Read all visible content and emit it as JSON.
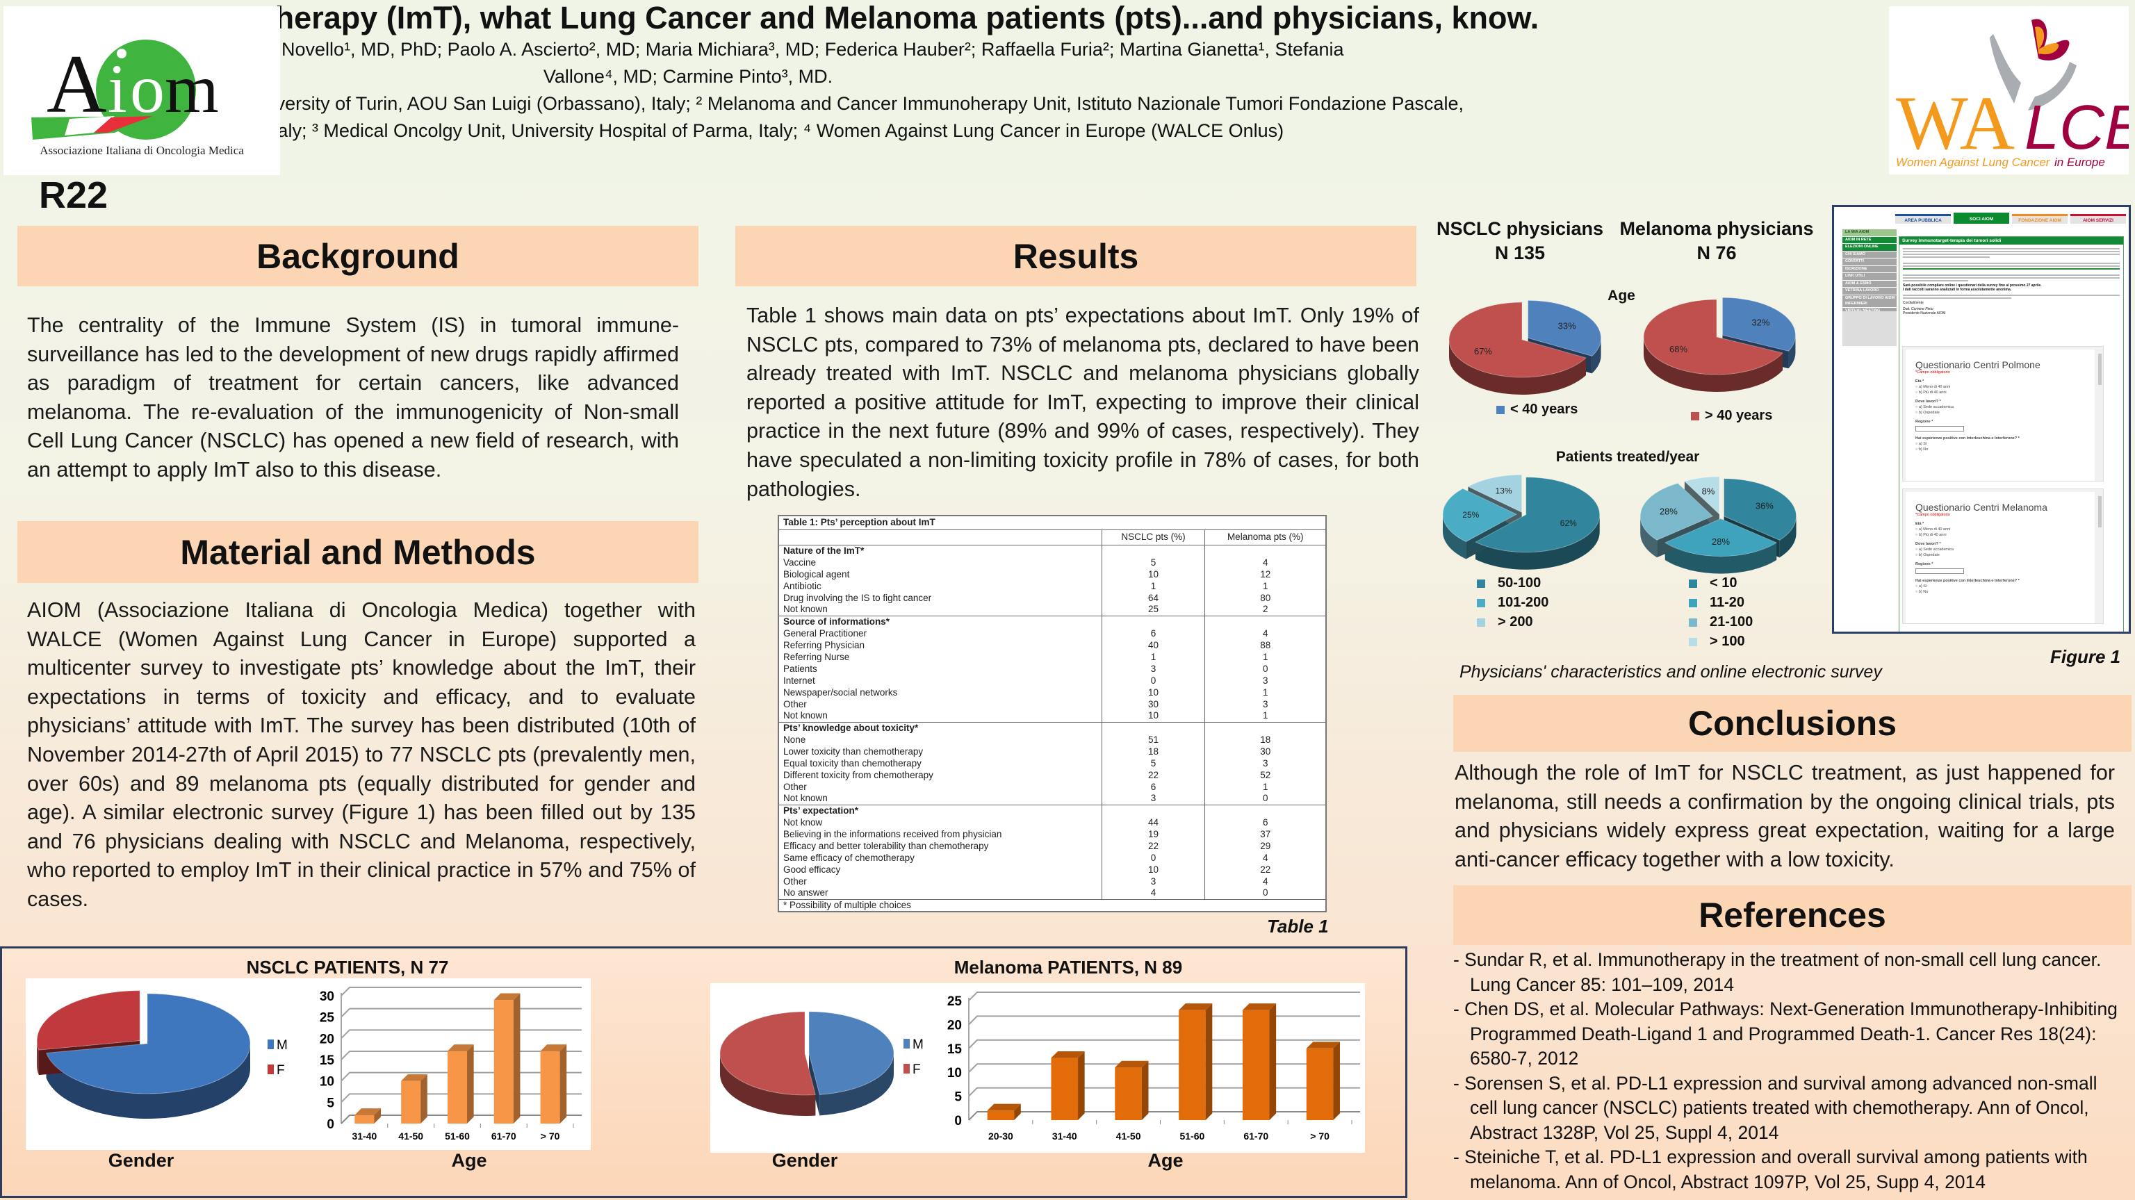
{
  "poster": {
    "title": "Immunotherapy (ImT), what Lung Cancer and Melanoma patients (pts)...and physicians, know.",
    "authors": "Enrica Capelletto¹, MD; Silvia Novello¹, MD, PhD; Paolo A. Ascierto², MD; Maria Michiara³, MD; Federica Hauber²; Raffaella Furia²; Martina Gianetta¹, Stefania Vallone⁴, MD; Carmine Pinto³, MD.",
    "affiliations": "¹ Department of Oncology, University of Turin, AOU San Luigi (Orbassano), Italy; ² Melanoma and Cancer Immunoherapy Unit, Istituto Nazionale Tumori Fondazione Pascale, Napoli, Italy; ³ Medical Oncolgy Unit, University Hospital of Parma, Italy; ⁴ Women Against Lung Cancer in Europe (WALCE Onlus)",
    "poster_id": "R22"
  },
  "logos": {
    "aiom": {
      "mark": "Aiom",
      "subtitle": "Associazione Italiana di Oncologia Medica",
      "colors": {
        "green": "#3fb53f",
        "red": "#e8303a"
      }
    },
    "walce": {
      "mark_wa": "WA",
      "mark_lce": "LCE",
      "tagline_a": "Women Against Lung Cancer",
      "tagline_b": "in Europe",
      "colors": {
        "orange": "#f39a1e",
        "crimson": "#a0003f"
      }
    }
  },
  "background": {
    "heading": "Background",
    "text": "The centrality of the Immune System (IS) in tumoral immune-surveillance has led to the development of new drugs rapidly affirmed as paradigm of treatment for certain cancers, like advanced melanoma. The re-evaluation of the immunogenicity of Non-small Cell Lung Cancer (NSCLC) has opened a new field of research, with an attempt to apply ImT also to this disease."
  },
  "methods": {
    "heading": "Material and Methods",
    "text": "AIOM (Associazione Italiana di Oncologia Medica) together with WALCE (Women Against Lung Cancer in Europe) supported a multicenter survey to investigate pts’ knowledge about the ImT, their expectations in terms of toxicity and efficacy, and to evaluate physicians’ attitude with ImT. The survey has been distributed (10th of November 2014-27th of April 2015) to 77 NSCLC pts (prevalently men, over 60s) and 89 melanoma pts (equally distributed for gender and age). A similar electronic survey (Figure 1) has been filled out by 135 and 76 physicians dealing with NSCLC and Melanoma, respectively, who reported to employ ImT in their clinical practice in 57% and 75% of cases."
  },
  "results": {
    "heading": "Results",
    "text": "Table 1 shows main data on pts’ expectations about ImT. Only 19% of NSCLC pts, compared to 73% of melanoma pts, declared to have been already treated with ImT. NSCLC and melanoma physicians globally reported a positive attitude for ImT, expecting to improve their clinical practice in the next future (89% and 99% of cases, respectively). They have speculated a non-limiting toxicity profile in 78% of cases, for both pathologies."
  },
  "table1": {
    "caption": "Table 1: Pts’ perception about ImT",
    "columns": [
      "",
      "NSCLC pts (%)",
      "Melanoma pts (%)"
    ],
    "groups": [
      {
        "label": "Nature of the ImT*",
        "rows": [
          [
            "Vaccine",
            "5",
            "4"
          ],
          [
            "Biological agent",
            "10",
            "12"
          ],
          [
            "Antibiotic",
            "1",
            "1"
          ],
          [
            "Drug involving the IS to fight cancer",
            "64",
            "80"
          ],
          [
            "Not known",
            "25",
            "2"
          ]
        ]
      },
      {
        "label": "Source of informations*",
        "rows": [
          [
            "General Practitioner",
            "6",
            "4"
          ],
          [
            "Referring Physician",
            "40",
            "88"
          ],
          [
            "Referring Nurse",
            "1",
            "1"
          ],
          [
            "Patients",
            "3",
            "0"
          ],
          [
            "Internet",
            "0",
            "3"
          ],
          [
            "Newspaper/social networks",
            "10",
            "1"
          ],
          [
            "Other",
            "30",
            "3"
          ],
          [
            "Not known",
            "10",
            "1"
          ]
        ]
      },
      {
        "label": "Pts’ knowledge about toxicity*",
        "rows": [
          [
            "None",
            "51",
            "18"
          ],
          [
            "Lower toxicity than chemotherapy",
            "18",
            "30"
          ],
          [
            "Equal toxicity than chemotherapy",
            "5",
            "3"
          ],
          [
            "Different toxicity from chemotherapy",
            "22",
            "52"
          ],
          [
            "Other",
            "6",
            "1"
          ],
          [
            "Not known",
            "3",
            "0"
          ]
        ]
      },
      {
        "label": "Pts’ expectation*",
        "rows": [
          [
            "Not know",
            "44",
            "6"
          ],
          [
            "Believing in the informations received from physician",
            "19",
            "37"
          ],
          [
            "Efficacy and better tolerability than chemotherapy",
            "22",
            "29"
          ],
          [
            "Same efficacy of chemotherapy",
            "0",
            "4"
          ],
          [
            "Good efficacy",
            "10",
            "22"
          ],
          [
            "Other",
            "3",
            "4"
          ],
          [
            "No answer",
            "4",
            "0"
          ]
        ]
      }
    ],
    "footnote": "* Possibility of multiple choices",
    "label": "Table 1"
  },
  "physicians": {
    "nsclc_title": "NSCLC physicians",
    "nsclc_n": "N 135",
    "melanoma_title": "Melanoma physicians",
    "melanoma_n": "N 76",
    "age_heading": "Age",
    "treated_heading": "Patients treated/year",
    "legend_under40": "< 40 years",
    "legend_over40": "> 40 years",
    "caption": "Physicians' characteristics and online electronic survey",
    "figure_label": "Figure 1"
  },
  "figure1": {
    "tabs": [
      {
        "label": "AREA PUBBLICA",
        "color": "#1f4e9c"
      },
      {
        "label": "SOCI AIOM",
        "color": "#0b8a2e"
      },
      {
        "label": "FONDAZIONE AIOM",
        "color": "#f08a1c"
      },
      {
        "label": "AIOM SERVIZI",
        "color": "#c8102e"
      }
    ],
    "sidebar": [
      "LA MIA AIOM",
      "AIOM IN RETE",
      "ELEZIONI ONLINE",
      "CHI SIAMO",
      "CONTATTI",
      "ISCRIZIONE",
      "LINK UTILI",
      "AIOM & ESMO",
      "VETRINA LAVORO",
      "GRUPPO DI LAVORO AIOM INFERMIERI",
      "VIRTUAL MEETING"
    ],
    "panel_title": "Survey Immunotarget-terapia dei tumori solidi",
    "bold_line_1": "Sarà possibile compilare online i questionari della survey fino al prossimo 27 aprile.",
    "bold_line_2": "I dati raccolti saranno analizzati in forma assolutamente anonima.",
    "closing": "Cordialmente",
    "signature_1": "Dott. Carmine Pinto",
    "signature_2": "Presidente Nazionale AIOM",
    "forms": [
      {
        "title": "Questionario Centri Polmone"
      },
      {
        "title": "Questionario Centri Melanoma"
      }
    ],
    "required_note": "*Campo obbligatorio",
    "q_age": "Età *",
    "q_age_a": "a) Meno di 40 anni",
    "q_age_b": "b) Più di 40 anni",
    "q_work": "Dove lavori? *",
    "q_work_a": "a) Sede accademica",
    "q_work_b": "b) Ospedale",
    "q_region": "Regione *",
    "q_exp": "Hai esperienze positive con Interleuchina e Interferone? *",
    "q_exp_a": "a) Sì",
    "q_exp_b": "b) No"
  },
  "conclusions": {
    "heading": "Conclusions",
    "text": "Although the role of ImT for NSCLC treatment, as just happened for melanoma, still needs a confirmation by the ongoing clinical trials, pts and physicians widely express great expectation, waiting for a large anti-cancer efficacy together with a low toxicity."
  },
  "references": {
    "heading": "References",
    "items": [
      "- Sundar R, et al. Immunotherapy in the treatment of non-small cell lung cancer. Lung Cancer 85: 101–109, 2014",
      "- Chen DS, et al. Molecular Pathways: Next-Generation Immunotherapy-Inhibiting Programmed Death-Ligand 1 and Programmed Death-1. Cancer Res 18(24): 6580-7, 2012",
      "- Sorensen S, et al. PD-L1 expression and survival among advanced non-small cell lung cancer (NSCLC) patients treated with chemotherapy. Ann of Oncol, Abstract 1328P, Vol 25, Suppl 4, 2014",
      "- Steiniche T, et al. PD-L1 expression and overall survival among patients with melanoma. Ann of Oncol, Abstract 1097P, Vol 25, Supp 4, 2014"
    ]
  },
  "patients_panel": {
    "nsclc_title": "NSCLC PATIENTS, N 77",
    "melanoma_title": "Melanoma PATIENTS, N 89",
    "gender_label": "Gender",
    "age_label": "Age"
  },
  "chart_data": [
    {
      "id": "nsclc_gender",
      "type": "pie",
      "categories": [
        "M",
        "F"
      ],
      "values": [
        72,
        28
      ],
      "colors": [
        "#3f77bf",
        "#c0393d"
      ],
      "legend": "right"
    },
    {
      "id": "nsclc_age",
      "type": "bar",
      "categories": [
        "31-40",
        "41-50",
        "51-60",
        "61-70",
        "> 70"
      ],
      "values": [
        2,
        10,
        17,
        29,
        17
      ],
      "ylim": [
        0,
        30
      ],
      "yticks": [
        0,
        5,
        10,
        15,
        20,
        25,
        30
      ],
      "color": "#f79646",
      "grid": true
    },
    {
      "id": "melanoma_gender",
      "type": "pie",
      "categories": [
        "M",
        "F"
      ],
      "values": [
        48,
        52
      ],
      "colors": [
        "#4f81bd",
        "#c0504d"
      ],
      "legend": "right"
    },
    {
      "id": "melanoma_age",
      "type": "bar",
      "categories": [
        "20-30",
        "31-40",
        "41-50",
        "51-60",
        "61-70",
        "> 70"
      ],
      "values": [
        2,
        13,
        11,
        23,
        23,
        15
      ],
      "ylim": [
        0,
        25
      ],
      "yticks": [
        0,
        5,
        10,
        15,
        20,
        25
      ],
      "color": "#e36c0a",
      "grid": true
    },
    {
      "id": "nsclc_phys_age",
      "type": "pie",
      "categories": [
        "< 40 years",
        "> 40 years"
      ],
      "values": [
        33,
        67
      ],
      "labels": [
        "33%",
        "67%"
      ],
      "colors": [
        "#4f81bd",
        "#c0504d"
      ]
    },
    {
      "id": "melanoma_phys_age",
      "type": "pie",
      "categories": [
        "< 40 years",
        "> 40 years"
      ],
      "values": [
        32,
        68
      ],
      "labels": [
        "32%",
        "68%"
      ],
      "colors": [
        "#4f81bd",
        "#c0504d"
      ]
    },
    {
      "id": "nsclc_phys_treated",
      "type": "pie",
      "categories": [
        "50-100",
        "101-200",
        "> 200"
      ],
      "values": [
        62,
        25,
        13
      ],
      "labels": [
        "62%",
        "25%",
        "13%"
      ],
      "colors": [
        "#31859c",
        "#4bacc6",
        "#a5d2e0"
      ],
      "legend": "bottom"
    },
    {
      "id": "melanoma_phys_treated",
      "type": "pie",
      "categories": [
        "< 10",
        "11-20",
        "21-100",
        "> 100"
      ],
      "values": [
        36,
        28,
        28,
        8
      ],
      "labels": [
        "36%",
        "28%",
        "28%",
        "8%"
      ],
      "colors": [
        "#31859c",
        "#3fa3bd",
        "#7bb8cc",
        "#b7dde8"
      ],
      "legend": "bottom"
    }
  ]
}
